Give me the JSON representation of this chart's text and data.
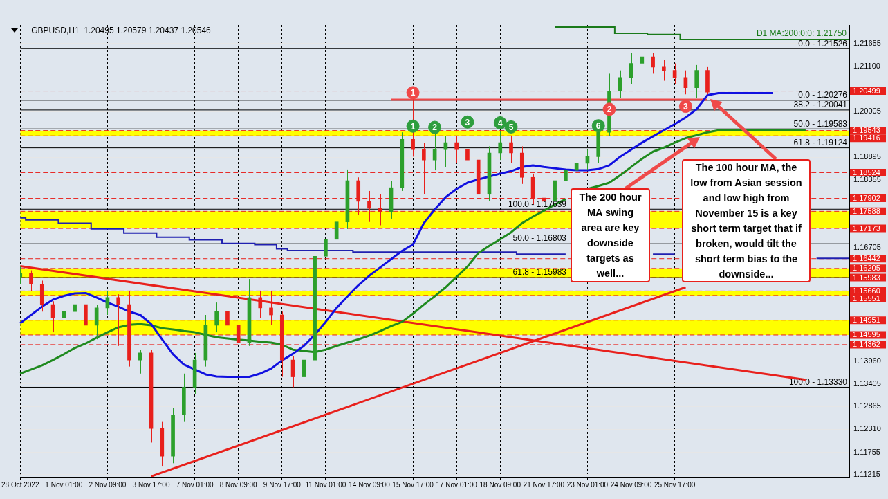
{
  "chart_data": {
    "type": "candlestick",
    "title": "GBPUSD,H1  1.20495 1.20579 1.20437 1.20546",
    "categories": [
      "28 Oct 2022",
      null,
      null,
      null,
      "1 Nov 01:00",
      null,
      null,
      null,
      "2 Nov 09:00",
      null,
      null,
      null,
      "3 Nov 17:00",
      null,
      null,
      null,
      "7 Nov 01:00",
      null,
      null,
      null,
      "8 Nov 09:00",
      null,
      null,
      null,
      "9 Nov 17:00",
      null,
      null,
      null,
      "11 Nov 01:00",
      null,
      null,
      null,
      "14 Nov 09:00",
      null,
      null,
      null,
      "15 Nov 17:00",
      null,
      null,
      null,
      "17 Nov 01:00",
      null,
      null,
      null,
      "18 Nov 09:00",
      null,
      null,
      null,
      "21 Nov 17:00",
      null,
      null,
      null,
      "23 Nov 01:00",
      null,
      null,
      null,
      "24 Nov 09:00",
      null,
      null,
      null,
      "25 Nov 17:00",
      null,
      null,
      null,
      null,
      null,
      null,
      null,
      null,
      null,
      null,
      null,
      null,
      null,
      null,
      null,
      null
    ],
    "ohlc": [
      [
        1.16,
        1.1625,
        1.1583,
        1.1608
      ],
      [
        1.1608,
        1.1616,
        1.1566,
        1.1583
      ],
      [
        1.1583,
        1.1591,
        1.1516,
        1.1533
      ],
      [
        1.1533,
        1.1541,
        1.1466,
        1.15
      ],
      [
        1.15,
        1.1533,
        1.1483,
        1.1516
      ],
      [
        1.1516,
        1.1558,
        1.15,
        1.1533
      ],
      [
        1.1533,
        1.1541,
        1.1458,
        1.1483
      ],
      [
        1.1483,
        1.1533,
        1.1449,
        1.1525
      ],
      [
        1.1525,
        1.1566,
        1.1508,
        1.155
      ],
      [
        1.155,
        1.1558,
        1.1433,
        1.1533
      ],
      [
        1.1533,
        1.1566,
        1.1383,
        1.1399
      ],
      [
        1.1399,
        1.1424,
        1.1366,
        1.1416
      ],
      [
        1.1416,
        1.1424,
        1.1199,
        1.1233
      ],
      [
        1.1233,
        1.1249,
        1.1141,
        1.1166
      ],
      [
        1.1166,
        1.1283,
        1.1149,
        1.1266
      ],
      [
        1.1266,
        1.1366,
        1.1249,
        1.1333
      ],
      [
        1.1333,
        1.1416,
        1.1316,
        1.1399
      ],
      [
        1.1399,
        1.1508,
        1.1383,
        1.1483
      ],
      [
        1.1483,
        1.1538,
        1.1466,
        1.1516
      ],
      [
        1.1516,
        1.1533,
        1.1458,
        1.1483
      ],
      [
        1.1483,
        1.15,
        1.1424,
        1.1441
      ],
      [
        1.1441,
        1.1595,
        1.1433,
        1.155
      ],
      [
        1.155,
        1.1566,
        1.15,
        1.1525
      ],
      [
        1.1525,
        1.1566,
        1.1483,
        1.1508
      ],
      [
        1.1508,
        1.1516,
        1.1358,
        1.1399
      ],
      [
        1.1399,
        1.1408,
        1.1333,
        1.1358
      ],
      [
        1.1358,
        1.1416,
        1.1349,
        1.1399
      ],
      [
        1.1399,
        1.1666,
        1.1383,
        1.165
      ],
      [
        1.165,
        1.1716,
        1.1633,
        1.1691
      ],
      [
        1.1691,
        1.1766,
        1.1675,
        1.1733
      ],
      [
        1.1733,
        1.186,
        1.1716,
        1.1833
      ],
      [
        1.1833,
        1.1841,
        1.175,
        1.1783
      ],
      [
        1.1783,
        1.1808,
        1.1733,
        1.1766
      ],
      [
        1.1766,
        1.18,
        1.1725,
        1.1758
      ],
      [
        1.1758,
        1.1833,
        1.1741,
        1.1816
      ],
      [
        1.1816,
        1.195,
        1.1808,
        1.1933
      ],
      [
        1.1933,
        1.203,
        1.1891,
        1.1908
      ],
      [
        1.1908,
        1.1925,
        1.18,
        1.1883
      ],
      [
        1.1883,
        1.195,
        1.1858,
        1.1908
      ],
      [
        1.1908,
        1.1941,
        1.1866,
        1.1925
      ],
      [
        1.1925,
        1.1941,
        1.1875,
        1.1908
      ],
      [
        1.1908,
        1.1953,
        1.1766,
        1.1883
      ],
      [
        1.1883,
        1.19,
        1.176,
        1.18
      ],
      [
        1.18,
        1.1916,
        1.1783,
        1.19
      ],
      [
        1.19,
        1.1953,
        1.1883,
        1.1925
      ],
      [
        1.1925,
        1.1941,
        1.1875,
        1.19
      ],
      [
        1.19,
        1.1916,
        1.1825,
        1.1841
      ],
      [
        1.1841,
        1.185,
        1.1775,
        1.1791
      ],
      [
        1.1791,
        1.1808,
        1.1766,
        1.1783
      ],
      [
        1.1783,
        1.1858,
        1.1775,
        1.1833
      ],
      [
        1.1833,
        1.1875,
        1.1825,
        1.1858
      ],
      [
        1.1858,
        1.1891,
        1.185,
        1.1875
      ],
      [
        1.1875,
        1.1908,
        1.1858,
        1.1891
      ],
      [
        1.1891,
        1.1958,
        1.1875,
        1.195
      ],
      [
        1.195,
        1.2092,
        1.1941,
        1.205
      ],
      [
        1.205,
        1.21,
        1.2033,
        1.2083
      ],
      [
        1.2083,
        1.2142,
        1.2067,
        1.2117
      ],
      [
        1.2117,
        1.2153,
        1.2108,
        1.2133
      ],
      [
        1.2133,
        1.2142,
        1.2092,
        1.2108
      ],
      [
        1.2108,
        1.2125,
        1.2075,
        1.21
      ],
      [
        1.21,
        1.2117,
        1.2067,
        1.2083
      ],
      [
        1.2083,
        1.21,
        1.2042,
        1.2058
      ],
      [
        1.2058,
        1.2113,
        1.2033,
        1.21
      ],
      [
        1.21,
        1.2108,
        1.2042,
        1.2047
      ],
      null,
      null,
      null,
      null,
      null,
      null,
      null,
      null,
      null,
      null,
      null,
      null,
      null
    ],
    "colors": [
      "#2ca02c",
      "#e8201c",
      "#e8201c",
      "#e8201c",
      "#2ca02c",
      "#2ca02c",
      "#e8201c",
      "#2ca02c",
      "#2ca02c",
      "#e8201c",
      "#e8201c",
      "#2ca02c",
      "#e8201c",
      "#e8201c",
      "#2ca02c",
      "#2ca02c",
      "#2ca02c",
      "#2ca02c",
      "#2ca02c",
      "#e8201c",
      "#e8201c",
      "#2ca02c",
      "#e8201c",
      "#e8201c",
      "#e8201c",
      "#e8201c",
      "#2ca02c",
      "#2ca02c",
      "#2ca02c",
      "#2ca02c",
      "#2ca02c",
      "#e8201c",
      "#e8201c",
      "#e8201c",
      "#2ca02c",
      "#2ca02c",
      "#e8201c",
      "#e8201c",
      "#2ca02c",
      "#2ca02c",
      "#e8201c",
      "#e8201c",
      "#e8201c",
      "#2ca02c",
      "#2ca02c",
      "#e8201c",
      "#e8201c",
      "#e8201c",
      "#e8201c",
      "#2ca02c",
      "#2ca02c",
      "#2ca02c",
      "#2ca02c",
      "#2ca02c",
      "#2ca02c",
      "#2ca02c",
      "#2ca02c",
      "#2ca02c",
      "#e8201c",
      "#e8201c",
      "#e8201c",
      "#e8201c",
      "#2ca02c",
      "#e8201c",
      null,
      null,
      null,
      null,
      null,
      null,
      null,
      null,
      null,
      null,
      null,
      null,
      null
    ],
    "series": [
      {
        "type": "line",
        "color": "#1010e0",
        "values": [
          1.1488,
          1.1508,
          1.1528,
          1.1545,
          1.1554,
          1.156,
          1.1561,
          1.155,
          1.1538,
          1.1528,
          1.1516,
          1.1508,
          1.1486,
          1.1449,
          1.1413,
          1.1388,
          1.1376,
          1.1364,
          1.1359,
          1.1358,
          1.1358,
          1.1358,
          1.1366,
          1.1378,
          1.1398,
          1.1414,
          1.1433,
          1.146,
          1.1491,
          1.1525,
          1.1553,
          1.158,
          1.1603,
          1.1623,
          1.1643,
          1.1663,
          1.1678,
          1.173,
          1.1763,
          1.1793,
          1.1813,
          1.1828,
          1.1836,
          1.1843,
          1.185,
          1.1856,
          1.1866,
          1.187,
          1.1866,
          1.1863,
          1.186,
          1.1858,
          1.1858,
          1.1861,
          1.187,
          1.1891,
          1.1908,
          1.1925,
          1.194,
          1.1955,
          1.197,
          1.1986,
          1.2006,
          1.204,
          1.2045,
          1.2045,
          1.2045,
          1.2045,
          1.2045,
          1.2045,
          null,
          null,
          null,
          null,
          null,
          null,
          null
        ]
      },
      {
        "type": "line",
        "color": "#1f8a1f",
        "values": [
          1.1366,
          1.1376,
          1.1386,
          1.1399,
          1.1413,
          1.1428,
          1.1439,
          1.1453,
          1.1466,
          1.1478,
          1.1484,
          1.1486,
          1.1483,
          1.1476,
          1.1473,
          1.1469,
          1.1466,
          1.146,
          1.1454,
          1.1451,
          1.1448,
          1.1446,
          1.1443,
          1.1441,
          1.1436,
          1.1424,
          1.1421,
          1.1418,
          1.1424,
          1.1433,
          1.1441,
          1.1449,
          1.1458,
          1.1469,
          1.1481,
          1.1491,
          1.1511,
          1.1533,
          1.1553,
          1.1575,
          1.16,
          1.1625,
          1.1658,
          1.1675,
          1.1691,
          1.1708,
          1.173,
          1.1746,
          1.176,
          1.1775,
          1.1788,
          null,
          1.1813,
          1.182,
          1.1828,
          1.1846,
          1.1866,
          1.1886,
          1.1903,
          1.1913,
          1.1925,
          1.1936,
          1.1943,
          1.195,
          1.1955,
          1.1955,
          1.1955,
          1.1955,
          1.1955,
          1.1955,
          1.1955,
          1.1955,
          1.1955,
          null,
          null,
          null,
          null
        ]
      },
      {
        "type": "step",
        "color": "#2020b0",
        "values": [
          1.1743,
          1.1738,
          1.1738,
          1.1738,
          1.173,
          1.173,
          1.173,
          1.1716,
          1.1716,
          1.1716,
          1.1706,
          1.1706,
          1.1706,
          1.1696,
          1.1696,
          1.1696,
          1.169,
          1.169,
          1.169,
          1.1681,
          1.1681,
          1.1681,
          1.1678,
          1.1678,
          1.1668,
          1.1664,
          1.1664,
          1.1664,
          1.1664,
          1.1664,
          1.1664,
          1.166,
          1.166,
          1.166,
          1.166,
          1.166,
          1.166,
          1.166,
          1.166,
          1.166,
          1.166,
          1.166,
          1.166,
          1.166,
          1.166,
          1.166,
          1.1655,
          1.1655,
          1.1655,
          1.1655,
          1.1655,
          null,
          null,
          null,
          null,
          null,
          null,
          null,
          1.1655,
          1.1655,
          1.1655,
          null,
          null,
          null,
          null,
          null,
          null,
          null,
          null,
          null,
          null,
          null,
          null,
          1.1645,
          1.1645,
          1.1645,
          1.1645
        ]
      },
      {
        "type": "step",
        "name": "D1 MA:200:0:0: 1.21750",
        "color": "#1a7a1a",
        "values": [
          null,
          null,
          null,
          null,
          null,
          null,
          null,
          null,
          null,
          null,
          null,
          null,
          null,
          null,
          null,
          null,
          null,
          null,
          null,
          null,
          null,
          null,
          null,
          null,
          null,
          null,
          null,
          null,
          null,
          null,
          null,
          null,
          null,
          null,
          null,
          null,
          null,
          null,
          null,
          null,
          null,
          null,
          null,
          null,
          null,
          null,
          null,
          null,
          null,
          1.2205,
          1.2205,
          1.2205,
          1.2205,
          1.2205,
          1.2205,
          1.219,
          1.219,
          1.219,
          1.2187,
          1.2187,
          1.2187,
          1.2175,
          1.2175,
          1.2175,
          1.2175,
          1.2175,
          1.2175,
          1.2175,
          1.2175,
          1.2175,
          1.2175,
          1.2175,
          1.2175,
          1.2175,
          1.2175,
          1.2175,
          1.2175
        ]
      },
      {
        "type": "line",
        "color": "#e8201c",
        "values": [
          1.1626,
          null,
          null,
          null,
          null,
          null,
          null,
          null,
          null,
          null,
          null,
          null,
          null,
          null,
          null,
          null,
          null,
          null,
          null,
          null,
          null,
          null,
          null,
          null,
          null,
          null,
          null,
          null,
          null,
          null,
          null,
          null,
          null,
          null,
          null,
          null,
          null,
          null,
          null,
          null,
          null,
          null,
          null,
          null,
          null,
          null,
          null,
          null,
          null,
          null,
          null,
          null,
          null,
          null,
          null,
          null,
          null,
          null,
          null,
          null,
          null,
          null,
          null,
          null,
          null,
          null,
          null,
          null,
          null,
          null,
          null,
          null,
          1.1351,
          null,
          null,
          null,
          null
        ]
      },
      {
        "type": "line",
        "color": "#e8201c",
        "values": [
          null,
          null,
          null,
          null,
          null,
          null,
          null,
          null,
          null,
          null,
          null,
          null,
          1.1117,
          null,
          null,
          null,
          null,
          null,
          null,
          null,
          null,
          null,
          null,
          null,
          null,
          null,
          null,
          null,
          null,
          null,
          null,
          null,
          null,
          null,
          null,
          null,
          null,
          null,
          null,
          null,
          null,
          null,
          null,
          null,
          null,
          null,
          null,
          null,
          null,
          null,
          null,
          null,
          null,
          null,
          null,
          null,
          null,
          null,
          null,
          null,
          null,
          1.1575,
          null,
          null,
          null,
          null,
          null,
          null,
          null,
          null,
          null,
          null,
          null,
          null,
          null,
          null,
          null
        ]
      },
      {
        "type": "line",
        "color": "#f04848",
        "values": [
          null,
          null,
          null,
          null,
          null,
          null,
          null,
          null,
          null,
          null,
          null,
          null,
          null,
          null,
          null,
          null,
          null,
          null,
          null,
          null,
          null,
          null,
          null,
          null,
          null,
          null,
          null,
          null,
          null,
          null,
          null,
          null,
          null,
          null,
          1.2029,
          1.2029,
          1.2029,
          1.2029,
          1.2029,
          1.2029,
          1.2029,
          1.2029,
          1.2029,
          1.2029,
          1.2029,
          1.2029,
          1.2029,
          1.2029,
          1.2029,
          1.2029,
          1.2029,
          1.2029,
          1.2029,
          1.2029,
          1.2029,
          1.2029,
          1.2029,
          1.2029,
          1.2029,
          1.2029,
          1.2029,
          1.2029,
          1.2029,
          1.2029,
          null,
          null,
          null,
          null,
          null,
          null,
          null,
          null,
          null,
          null,
          null,
          null,
          null
        ]
      },
      {
        "type": "scatter",
        "marker": "circle",
        "color": "#2e9e3e",
        "values": [
          null,
          null,
          null,
          null,
          null,
          null,
          null,
          null,
          null,
          null,
          null,
          null,
          null,
          null,
          null,
          null,
          null,
          null,
          null,
          null,
          null,
          null,
          null,
          null,
          null,
          null,
          null,
          null,
          null,
          null,
          null,
          null,
          null,
          null,
          null,
          null,
          1.1965,
          null,
          1.1962,
          null,
          null,
          1.1975,
          null,
          null,
          1.1973,
          1.1963,
          null,
          null,
          null,
          null,
          null,
          null,
          null,
          1.1966,
          null,
          null,
          null,
          null,
          null,
          null,
          null,
          null,
          null,
          null,
          null,
          null,
          null,
          null,
          null,
          null,
          null,
          null,
          null,
          null,
          null,
          null,
          null
        ]
      },
      {
        "type": "scatter",
        "marker": "circle",
        "color": "#f04848",
        "values": [
          null,
          null,
          null,
          null,
          null,
          null,
          null,
          null,
          null,
          null,
          null,
          null,
          null,
          null,
          null,
          null,
          null,
          null,
          null,
          null,
          null,
          null,
          null,
          null,
          null,
          null,
          null,
          null,
          null,
          null,
          null,
          null,
          null,
          null,
          null,
          null,
          1.2046,
          null,
          null,
          null,
          null,
          null,
          null,
          null,
          null,
          null,
          null,
          null,
          null,
          null,
          null,
          null,
          null,
          null,
          1.2006,
          null,
          null,
          null,
          null,
          null,
          null,
          1.2013,
          null,
          null,
          null,
          null,
          null,
          null,
          null,
          null,
          null,
          null,
          null,
          null,
          null,
          null,
          null
        ]
      }
    ],
    "ylim": [
      1.1116,
      1.221
    ],
    "yticks": [
      1.21655,
      {
        "value": 1.211,
        "label": "1.21100"
      },
      1.20005,
      1.18895,
      1.18355,
      1.16705,
      {
        "value": 1.1396,
        "label": "1.13960"
      },
      1.13405,
      1.12865,
      {
        "value": 1.1231,
        "label": "1.12310"
      },
      1.11755,
      1.11215
    ],
    "bands": [
      {
        "axis": "y",
        "from": 1.19416,
        "to": 1.19543,
        "color": "#ffff00"
      },
      {
        "axis": "y",
        "from": 1.17173,
        "to": 1.17588,
        "color": "#ffff00"
      },
      {
        "axis": "y",
        "from": 1.15983,
        "to": 1.16205,
        "color": "#ffff00"
      },
      {
        "axis": "y",
        "from": 1.15551,
        "to": 1.1566,
        "color": "#ffff00"
      },
      {
        "axis": "y",
        "from": 1.14595,
        "to": 1.14951,
        "color": "#ffff00"
      }
    ],
    "ref_lines": [
      {
        "axis": "y",
        "value": 1.20499,
        "label": "1.20499",
        "color": "#e8201c",
        "line_style": "dashed"
      },
      {
        "axis": "y",
        "value": 1.19543,
        "label": "1.19543",
        "color": "#e8201c",
        "line_style": "dashed"
      },
      {
        "axis": "y",
        "value": 1.19416,
        "label": "1.19416",
        "color": "#e8201c",
        "line_style": "dashed"
      },
      {
        "axis": "y",
        "value": 1.18524,
        "label": "1.18524",
        "color": "#e8201c",
        "line_style": "dashed"
      },
      {
        "axis": "y",
        "value": 1.17902,
        "label": "1.17902",
        "color": "#e8201c",
        "line_style": "dashed"
      },
      {
        "axis": "y",
        "value": 1.17588,
        "label": "1.17588",
        "color": "#e8201c",
        "line_style": "dashed"
      },
      {
        "axis": "y",
        "value": 1.17173,
        "label": "1.17173",
        "color": "#e8201c",
        "line_style": "dashed"
      },
      {
        "axis": "y",
        "value": 1.16442,
        "label": "1.16442",
        "color": "#e8201c",
        "line_style": "dashed"
      },
      {
        "axis": "y",
        "value": 1.16205,
        "label": "1.16205",
        "color": "#e8201c",
        "line_style": "dashed"
      },
      {
        "axis": "y",
        "value": 1.15983,
        "label": "1.15983",
        "color": "#e8201c",
        "line_style": "dashed"
      },
      {
        "axis": "y",
        "value": 1.1566,
        "label": "1.15660",
        "color": "#e8201c",
        "line_style": "dashed"
      },
      {
        "axis": "y",
        "value": 1.15551,
        "label": "1.15551",
        "color": "#e8201c",
        "line_style": "dashed"
      },
      {
        "axis": "y",
        "value": 1.14951,
        "label": "1.14951",
        "color": "#e8201c",
        "line_style": "dashed"
      },
      {
        "axis": "y",
        "value": 1.14595,
        "label": "1.14595",
        "color": "#e8201c",
        "line_style": "dashed"
      },
      {
        "axis": "y",
        "value": 1.14362,
        "label": "1.14362",
        "color": "#e8201c",
        "line_style": "dashed"
      },
      {
        "axis": "y",
        "value": 1.21526,
        "color": "#000000",
        "line_style": "solid"
      },
      {
        "axis": "y",
        "value": 1.20276,
        "color": "#000000",
        "line_style": "solid"
      },
      {
        "axis": "y",
        "value": 1.20041,
        "color": "#000000",
        "line_style": "solid"
      },
      {
        "axis": "y",
        "value": 1.19583,
        "color": "#000000",
        "line_style": "solid"
      },
      {
        "axis": "y",
        "value": 1.19124,
        "color": "#000000",
        "line_style": "solid"
      },
      {
        "axis": "y",
        "value": 1.17639,
        "color": "#000000",
        "line_style": "solid"
      },
      {
        "axis": "y",
        "value": 1.16803,
        "color": "#000000",
        "line_style": "solid"
      },
      {
        "axis": "y",
        "value": 1.15983,
        "color": "#000000",
        "line_style": "solid"
      },
      {
        "axis": "y",
        "value": 1.1333,
        "color": "#000000",
        "line_style": "solid"
      }
    ],
    "annotations": [
      "The 200 hour MA swing area are key downside targets as well...",
      "The 100 hour MA, the low from Asian session and low high from November 15 is a key short term target that if broken, would tilt the short term bias to the downside...",
      {
        "text": "0.0 - 1.21526",
        "y": 1.21526
      },
      {
        "text": "0.0 - 1.20276",
        "y": 1.20276
      },
      {
        "text": "38.2 - 1.20041",
        "y": 1.20041
      },
      {
        "text": "50.0 - 1.19583",
        "y": 1.19583
      },
      {
        "text": "61.8 - 1.19124",
        "y": 1.19124
      },
      {
        "text": "100.0 - 1.17639",
        "y": 1.17639
      },
      {
        "text": "50.0 - 1.16803",
        "y": 1.16803
      },
      {
        "text": "61.8 - 1.15983",
        "y": 1.15983
      },
      {
        "text": "100.0 - 1.13330",
        "y": 1.1333
      },
      {
        "text": "1",
        "y": 1.1965
      },
      {
        "text": "2",
        "y": 1.1962
      },
      {
        "text": "3",
        "y": 1.1975
      },
      {
        "text": "4",
        "y": 1.1973
      },
      {
        "text": "5",
        "y": 1.1963
      },
      {
        "text": "6",
        "y": 1.1966
      },
      {
        "text": "1",
        "y": 1.2046
      },
      {
        "text": "2",
        "y": 1.2006
      },
      {
        "text": "3",
        "y": 1.2013
      }
    ],
    "grid": true
  }
}
